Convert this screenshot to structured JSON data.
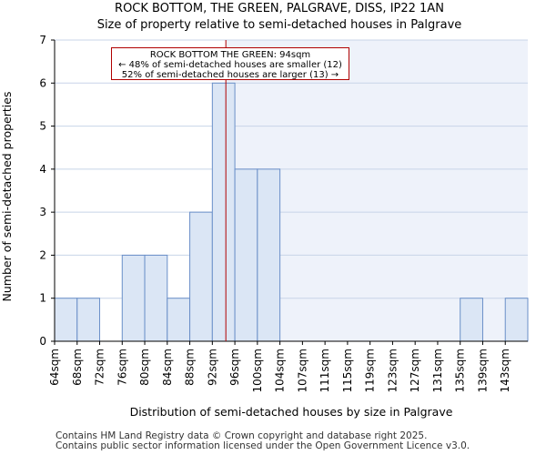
{
  "chart_data": {
    "type": "bar",
    "title": "ROCK BOTTOM, THE GREEN, PALGRAVE, DISS, IP22 1AN",
    "subtitle": "Size of property relative to semi-detached houses in Palgrave",
    "xlabel": "Distribution of semi-detached houses by size in Palgrave",
    "ylabel": "Number of semi-detached properties",
    "categories": [
      "64sqm",
      "68sqm",
      "72sqm",
      "76sqm",
      "80sqm",
      "84sqm",
      "88sqm",
      "92sqm",
      "96sqm",
      "100sqm",
      "104sqm",
      "107sqm",
      "111sqm",
      "115sqm",
      "119sqm",
      "123sqm",
      "127sqm",
      "131sqm",
      "135sqm",
      "139sqm",
      "143sqm"
    ],
    "values": [
      1,
      1,
      0,
      2,
      2,
      1,
      3,
      6,
      4,
      4,
      0,
      0,
      0,
      0,
      0,
      0,
      0,
      0,
      1,
      0,
      1
    ],
    "ylim": [
      0,
      7
    ],
    "yticks": [
      "0",
      "1",
      "2",
      "3",
      "4",
      "5",
      "6",
      "7"
    ],
    "marker_value": 94,
    "marker_position_bins": 7.6,
    "highlight_start_bins": 7.6,
    "colors": {
      "bar_fill": "#dbe6f5",
      "bar_stroke": "#6a8fc8",
      "highlight": "#eef2fa",
      "marker": "#b00000",
      "grid": "#c8d4e8"
    },
    "annotation": {
      "line1": "ROCK BOTTOM THE GREEN: 94sqm",
      "line2": "← 48% of semi-detached houses are smaller (12)",
      "line3": "52% of semi-detached houses are larger (13) →"
    }
  },
  "footer": {
    "line1": "Contains HM Land Registry data © Crown copyright and database right 2025.",
    "line2": "Contains public sector information licensed under the Open Government Licence v3.0."
  }
}
